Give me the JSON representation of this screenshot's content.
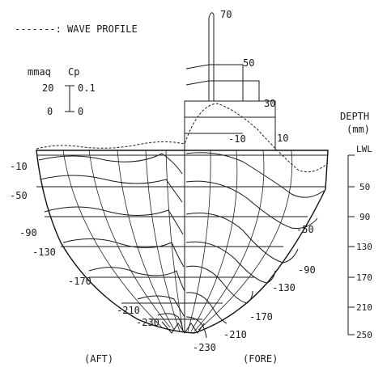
{
  "legend": {
    "wave_profile": "-------: WAVE PROFILE",
    "unit_pressure": "mmaq",
    "unit_cp": "Cp",
    "scale_pressure_top": "20",
    "scale_pressure_bottom": "0",
    "scale_cp_top": "0.1",
    "scale_cp_bottom": "0"
  },
  "depth_axis": {
    "title_line1": "DEPTH",
    "title_line2": "(mm)",
    "ticks": [
      "LWL",
      "50",
      "90",
      "130",
      "170",
      "210",
      "250"
    ]
  },
  "aft_labels": [
    "-10",
    "-50",
    "-90",
    "-130",
    "-170",
    "-210",
    "-230"
  ],
  "fore_labels": [
    "-10",
    "-50",
    "-90",
    "-130",
    "-170",
    "-210",
    "-230"
  ],
  "top_labels": [
    "70",
    "50",
    "30",
    "10"
  ],
  "captions": {
    "aft": "(AFT)",
    "fore": "(FORE)"
  }
}
